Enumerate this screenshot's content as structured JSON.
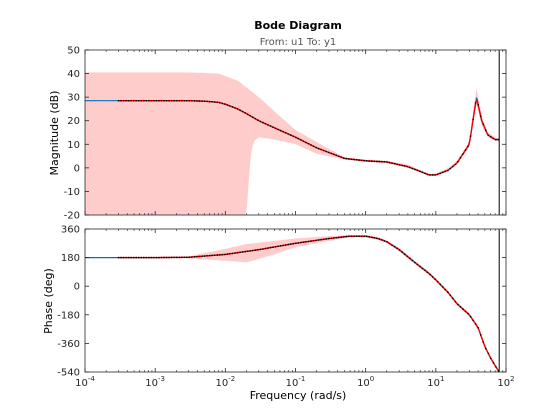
{
  "chart_data": {
    "type": "line",
    "title": "Bode Diagram",
    "subtitle": "From: u1  To: y1",
    "xlabel": "Frequency  (rad/s)",
    "xscale": "log",
    "xlim": [
      0.0001,
      100
    ],
    "x_tick_labels": [
      {
        "base": "10",
        "exp": "-4"
      },
      {
        "base": "10",
        "exp": "-3"
      },
      {
        "base": "10",
        "exp": "-2"
      },
      {
        "base": "10",
        "exp": "-1"
      },
      {
        "base": "10",
        "exp": "0"
      },
      {
        "base": "10",
        "exp": "1"
      },
      {
        "base": "10",
        "exp": "2"
      }
    ],
    "grid": false,
    "colors": {
      "confidence_band": "#ffcccc",
      "measured": "#ff0000",
      "model": "#0072bd",
      "marker": "#000000",
      "axes": "#262626"
    },
    "panels": [
      {
        "name": "magnitude",
        "ylabel": "Magnitude (dB)",
        "ylim": [
          -20,
          50
        ],
        "y_ticks": [
          "-20",
          "-10",
          "0",
          "10",
          "20",
          "30",
          "40",
          "50"
        ],
        "model": {
          "x": [
            0.0001,
            0.0003,
            0.001,
            0.003,
            0.005,
            0.008,
            0.01,
            0.015,
            0.02,
            0.03,
            0.05,
            0.1,
            0.2,
            0.5,
            1,
            2,
            4,
            6,
            8,
            10,
            15,
            20,
            30,
            38,
            45,
            55,
            70,
            80
          ],
          "y": [
            28.5,
            28.5,
            28.5,
            28.5,
            28.3,
            27.8,
            27,
            25,
            23,
            20,
            17,
            13,
            8.5,
            4,
            3,
            2.5,
            0.5,
            -1.5,
            -3,
            -3,
            -1,
            2,
            10,
            30,
            20,
            14,
            12,
            12
          ]
        },
        "confidence_upper": {
          "x": [
            0.0001,
            0.003,
            0.008,
            0.015,
            0.03,
            0.05,
            0.1,
            0.2,
            0.5,
            1,
            2,
            4,
            6,
            8,
            10,
            15,
            20,
            30,
            38,
            45,
            55,
            70,
            80
          ],
          "y": [
            40.5,
            40.5,
            40,
            37,
            30,
            24,
            16,
            11,
            4.5,
            3.5,
            3,
            1.5,
            -1,
            -2.5,
            -2.5,
            0,
            3,
            11,
            34,
            22,
            15,
            13,
            12.5
          ]
        },
        "confidence_lower": {
          "x": [
            0.0001,
            0.01,
            0.018,
            0.02,
            0.021,
            0.023,
            0.025,
            0.03,
            0.05,
            0.1,
            0.2,
            0.5,
            1,
            2,
            4,
            6,
            8,
            10,
            15,
            20,
            30,
            38,
            45,
            55,
            70,
            80
          ],
          "y": [
            -20,
            -20,
            -20,
            -20,
            -10,
            5,
            11,
            13,
            12,
            10,
            6,
            3.5,
            2.5,
            2,
            0,
            -2,
            -3.5,
            -3.5,
            -1.5,
            1.5,
            9,
            27,
            18,
            13,
            11.5,
            11.5
          ]
        }
      },
      {
        "name": "phase",
        "ylabel": "Phase (deg)",
        "ylim": [
          -540,
          360
        ],
        "y_ticks": [
          "-540",
          "-360",
          "-180",
          "0",
          "180",
          "360"
        ],
        "model": {
          "x": [
            0.0001,
            0.001,
            0.003,
            0.01,
            0.03,
            0.1,
            0.3,
            0.6,
            1,
            1.5,
            2,
            3,
            5,
            8,
            10,
            15,
            20,
            30,
            40,
            50,
            60,
            70,
            80
          ],
          "y": [
            180,
            180,
            182,
            200,
            230,
            270,
            300,
            315,
            315,
            300,
            280,
            230,
            150,
            80,
            40,
            -40,
            -110,
            -180,
            -260,
            -380,
            -450,
            -500,
            -540
          ]
        },
        "confidence_upper": {
          "x": [
            0.0001,
            0.001,
            0.003,
            0.01,
            0.02,
            0.05,
            0.1,
            0.3,
            0.6,
            1,
            1.5,
            2,
            3,
            5,
            8,
            10,
            15,
            20,
            30,
            40,
            50,
            60,
            70,
            80
          ],
          "y": [
            181,
            181,
            188,
            235,
            265,
            285,
            300,
            315,
            322,
            322,
            310,
            288,
            240,
            160,
            90,
            50,
            -30,
            -100,
            -170,
            -250,
            -370,
            -440,
            -495,
            -535
          ]
        },
        "confidence_lower": {
          "x": [
            0.0001,
            0.001,
            0.003,
            0.01,
            0.02,
            0.05,
            0.1,
            0.3,
            0.6,
            1,
            1.5,
            2,
            3,
            5,
            8,
            10,
            15,
            20,
            30,
            40,
            50,
            60,
            70,
            80
          ],
          "y": [
            179,
            179,
            175,
            160,
            150,
            200,
            245,
            285,
            308,
            308,
            290,
            272,
            220,
            140,
            70,
            30,
            -50,
            -120,
            -190,
            -270,
            -390,
            -460,
            -505,
            -545
          ]
        }
      }
    ]
  }
}
